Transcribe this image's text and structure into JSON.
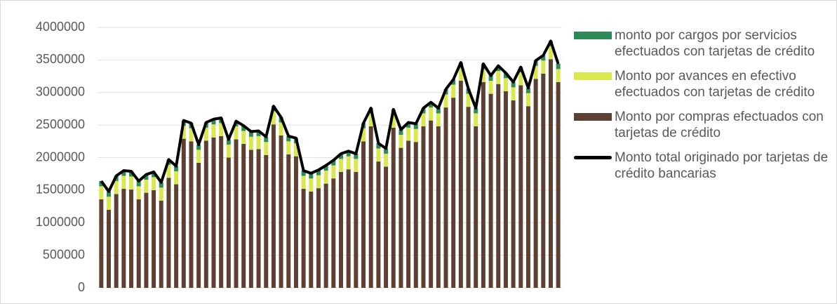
{
  "chart_data": {
    "type": "bar",
    "stacked": true,
    "categories": [
      null,
      null,
      null,
      null,
      null,
      null,
      null,
      null,
      null,
      null,
      null,
      null,
      null,
      null,
      null,
      null,
      null,
      null,
      null,
      null,
      null,
      null,
      null,
      null,
      null,
      null,
      null,
      null,
      null,
      null,
      null,
      null,
      null,
      null,
      null,
      null,
      null,
      null,
      null,
      null,
      null,
      null,
      null,
      null,
      null,
      null,
      null,
      null,
      null,
      null,
      null,
      null,
      null,
      null,
      null,
      null,
      null,
      null,
      null,
      null,
      null,
      null
    ],
    "ylim": [
      0,
      4000000
    ],
    "yticks": [
      0,
      500000,
      1000000,
      1500000,
      2000000,
      2500000,
      3000000,
      3500000,
      4000000
    ],
    "grid": true,
    "series": [
      {
        "name": "Monto por compras efectuados con tarjetas de crédito",
        "type": "bar",
        "color": "#5c4033",
        "values": [
          1360000,
          1200000,
          1440000,
          1520000,
          1510000,
          1360000,
          1460000,
          1500000,
          1340000,
          1690000,
          1590000,
          2290000,
          2250000,
          1920000,
          2260000,
          2310000,
          2330000,
          2000000,
          2280000,
          2210000,
          2120000,
          2130000,
          2040000,
          2510000,
          2340000,
          2050000,
          2020000,
          1520000,
          1480000,
          1530000,
          1600000,
          1680000,
          1780000,
          1820000,
          1780000,
          2250000,
          2480000,
          1940000,
          1860000,
          2460000,
          2150000,
          2260000,
          2240000,
          2480000,
          2570000,
          2480000,
          2770000,
          2920000,
          3180000,
          2780000,
          2480000,
          3160000,
          2980000,
          3130000,
          3020000,
          2880000,
          3110000,
          2790000,
          3210000,
          3290000,
          3510000,
          3160000
        ]
      },
      {
        "name": "Monto por avances en efectivo efectuados con tarjetas de crédito",
        "type": "bar",
        "color": "#d9e84f",
        "values": [
          200000,
          200000,
          200000,
          200000,
          200000,
          200000,
          200000,
          200000,
          200000,
          200000,
          200000,
          200000,
          200000,
          200000,
          200000,
          200000,
          200000,
          200000,
          200000,
          200000,
          200000,
          200000,
          200000,
          200000,
          200000,
          200000,
          200000,
          200000,
          200000,
          200000,
          200000,
          200000,
          200000,
          200000,
          200000,
          200000,
          200000,
          200000,
          200000,
          200000,
          200000,
          200000,
          200000,
          200000,
          200000,
          200000,
          200000,
          200000,
          200000,
          200000,
          200000,
          200000,
          200000,
          200000,
          200000,
          200000,
          200000,
          200000,
          200000,
          200000,
          200000,
          200000
        ]
      },
      {
        "name": "monto por cargos por servicios efectuados con tarjetas de crédito",
        "type": "bar",
        "color": "#2e8b57",
        "values": [
          80000,
          80000,
          80000,
          80000,
          80000,
          80000,
          80000,
          80000,
          80000,
          80000,
          80000,
          80000,
          80000,
          80000,
          80000,
          80000,
          80000,
          80000,
          80000,
          80000,
          80000,
          80000,
          80000,
          80000,
          80000,
          80000,
          80000,
          80000,
          80000,
          80000,
          80000,
          80000,
          80000,
          80000,
          80000,
          80000,
          80000,
          80000,
          80000,
          80000,
          80000,
          80000,
          80000,
          80000,
          80000,
          80000,
          80000,
          80000,
          80000,
          80000,
          80000,
          80000,
          80000,
          80000,
          80000,
          80000,
          80000,
          80000,
          80000,
          80000,
          80000,
          80000
        ]
      },
      {
        "name": "Monto total originado por tarjetas de crédito bancarias",
        "type": "line",
        "color": "#000000",
        "values": [
          1640000,
          1480000,
          1720000,
          1800000,
          1790000,
          1640000,
          1740000,
          1780000,
          1620000,
          1970000,
          1870000,
          2570000,
          2530000,
          2200000,
          2540000,
          2590000,
          2610000,
          2280000,
          2560000,
          2490000,
          2400000,
          2410000,
          2320000,
          2790000,
          2620000,
          2330000,
          2300000,
          1800000,
          1760000,
          1810000,
          1880000,
          1960000,
          2060000,
          2100000,
          2060000,
          2530000,
          2760000,
          2220000,
          2140000,
          2740000,
          2430000,
          2540000,
          2520000,
          2760000,
          2850000,
          2760000,
          3050000,
          3200000,
          3460000,
          3060000,
          2760000,
          3440000,
          3260000,
          3410000,
          3300000,
          3160000,
          3390000,
          3070000,
          3490000,
          3570000,
          3790000,
          3440000
        ]
      }
    ],
    "legend_order": [
      2,
      1,
      0,
      3
    ]
  }
}
